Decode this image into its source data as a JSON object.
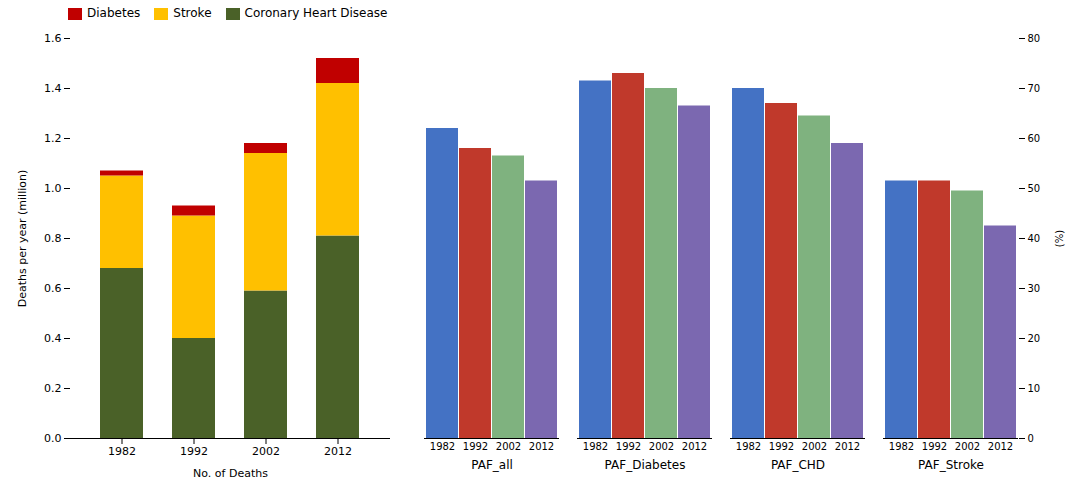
{
  "chart_data": [
    {
      "type": "bar",
      "stacked": true,
      "categories": [
        "1982",
        "1992",
        "2002",
        "2012"
      ],
      "series": [
        {
          "name": "Coronary Heart Disease",
          "color": "#4a6128",
          "values": [
            0.68,
            0.4,
            0.59,
            0.81
          ]
        },
        {
          "name": "Stroke",
          "color": "#ffc000",
          "values": [
            0.37,
            0.49,
            0.55,
            0.61
          ]
        },
        {
          "name": "Diabetes",
          "color": "#c00000",
          "values": [
            0.02,
            0.04,
            0.04,
            0.1
          ]
        }
      ],
      "xlabel": "No. of Deaths",
      "ylabel": "Deaths per year (million)",
      "ylim": [
        0,
        1.6
      ],
      "yticks": [
        {
          "value": 0.0,
          "label": "0.0"
        },
        0.2,
        0.4,
        0.6,
        0.8,
        {
          "value": 1.0,
          "label": "1.0"
        },
        1.2,
        1.4,
        1.6
      ],
      "legend": "upper left",
      "grid": false
    },
    {
      "type": "bar",
      "categories": [
        "PAF_all",
        "PAF_Diabetes",
        "PAF_CHD",
        "PAF_Stroke"
      ],
      "series": [
        {
          "name": "1982",
          "color": "#4472c4",
          "values": [
            62.0,
            71.5,
            70.0,
            51.5
          ]
        },
        {
          "name": "1992",
          "color": "#c0392b",
          "values": [
            58.0,
            73.0,
            67.0,
            51.5
          ]
        },
        {
          "name": "2002",
          "color": "#7fb27f",
          "values": [
            56.5,
            70.0,
            64.5,
            49.5
          ]
        },
        {
          "name": "2012",
          "color": "#7b68b0",
          "values": [
            51.5,
            66.5,
            59.0,
            42.5
          ]
        }
      ],
      "ylabel": "(%)",
      "ylim": [
        0,
        80
      ],
      "yticks": [
        0,
        10,
        20,
        30,
        40,
        50,
        60,
        70,
        80
      ],
      "grid": false
    }
  ]
}
